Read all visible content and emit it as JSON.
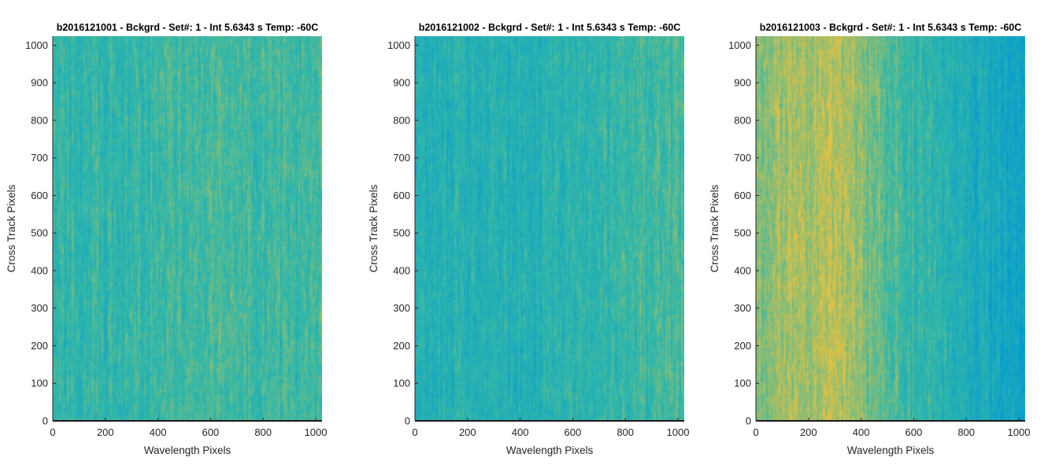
{
  "colors": {
    "low": "#0097d6",
    "mid": "#33b8a8",
    "high": "#e9c23f",
    "axis": "#262626",
    "bottom_axis": "#1a1a1a"
  },
  "chart_data": [
    {
      "type": "heatmap",
      "title": "b2016121001 - Bckgrd - Set#: 1 - Int 5.6343 s Temp: -60C",
      "xlabel": "Wavelength Pixels",
      "ylabel": "Cross Track Pixels",
      "xlim": [
        0,
        1024
      ],
      "ylim": [
        0,
        1024
      ],
      "xticks": [
        0,
        200,
        400,
        600,
        800,
        1000
      ],
      "yticks": [
        0,
        100,
        200,
        300,
        400,
        500,
        600,
        700,
        800,
        900,
        1000
      ],
      "column_profile": {
        "x": [
          0,
          100,
          200,
          300,
          400,
          500,
          600,
          700,
          800,
          900,
          1024
        ],
        "level": [
          0.5,
          0.48,
          0.47,
          0.48,
          0.5,
          0.52,
          0.56,
          0.54,
          0.52,
          0.53,
          0.55
        ]
      }
    },
    {
      "type": "heatmap",
      "title": "b2016121002 - Bckgrd - Set#: 1 - Int 5.6343 s Temp: -60C",
      "xlabel": "Wavelength Pixels",
      "ylabel": "Cross Track Pixels",
      "xlim": [
        0,
        1024
      ],
      "ylim": [
        0,
        1024
      ],
      "xticks": [
        0,
        200,
        400,
        600,
        800,
        1000
      ],
      "yticks": [
        0,
        100,
        200,
        300,
        400,
        500,
        600,
        700,
        800,
        900,
        1000
      ],
      "column_profile": {
        "x": [
          0,
          100,
          200,
          300,
          400,
          500,
          600,
          700,
          800,
          900,
          1024
        ],
        "level": [
          0.36,
          0.38,
          0.4,
          0.4,
          0.38,
          0.4,
          0.43,
          0.46,
          0.5,
          0.54,
          0.56
        ]
      }
    },
    {
      "type": "heatmap",
      "title": "b2016121003 - Bckgrd - Set#: 1 - Int 5.6343 s Temp: -60C",
      "xlabel": "Wavelength Pixels",
      "ylabel": "Cross Track Pixels",
      "xlim": [
        0,
        1024
      ],
      "ylim": [
        0,
        1024
      ],
      "xticks": [
        0,
        200,
        400,
        600,
        800,
        1000
      ],
      "yticks": [
        0,
        100,
        200,
        300,
        400,
        500,
        600,
        700,
        800,
        900,
        1000
      ],
      "column_profile": {
        "x": [
          0,
          100,
          200,
          300,
          350,
          400,
          500,
          600,
          700,
          800,
          900,
          1024
        ],
        "level": [
          0.72,
          0.78,
          0.82,
          0.86,
          0.84,
          0.72,
          0.62,
          0.48,
          0.42,
          0.32,
          0.26,
          0.2
        ]
      }
    }
  ]
}
